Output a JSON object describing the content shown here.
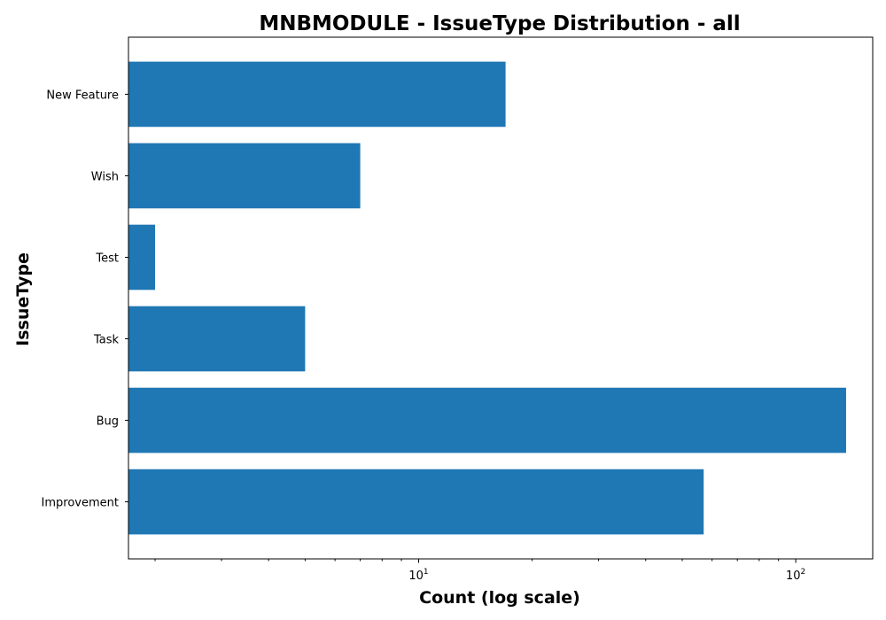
{
  "chart_data": {
    "type": "bar",
    "orientation": "horizontal",
    "title": "MNBMODULE - IssueType Distribution - all",
    "xlabel": "Count (log scale)",
    "ylabel": "IssueType",
    "xscale": "log",
    "xlim": [
      1.7,
      160
    ],
    "categories": [
      "New Feature",
      "Wish",
      "Test",
      "Task",
      "Bug",
      "Improvement"
    ],
    "values": [
      17,
      7,
      2,
      5,
      136,
      57
    ],
    "bar_color": "#1f77b4",
    "x_major_ticks": [
      {
        "value": 10,
        "base": "10",
        "exp": "1"
      },
      {
        "value": 100,
        "base": "10",
        "exp": "2"
      }
    ],
    "grid": false,
    "legend": "none"
  }
}
